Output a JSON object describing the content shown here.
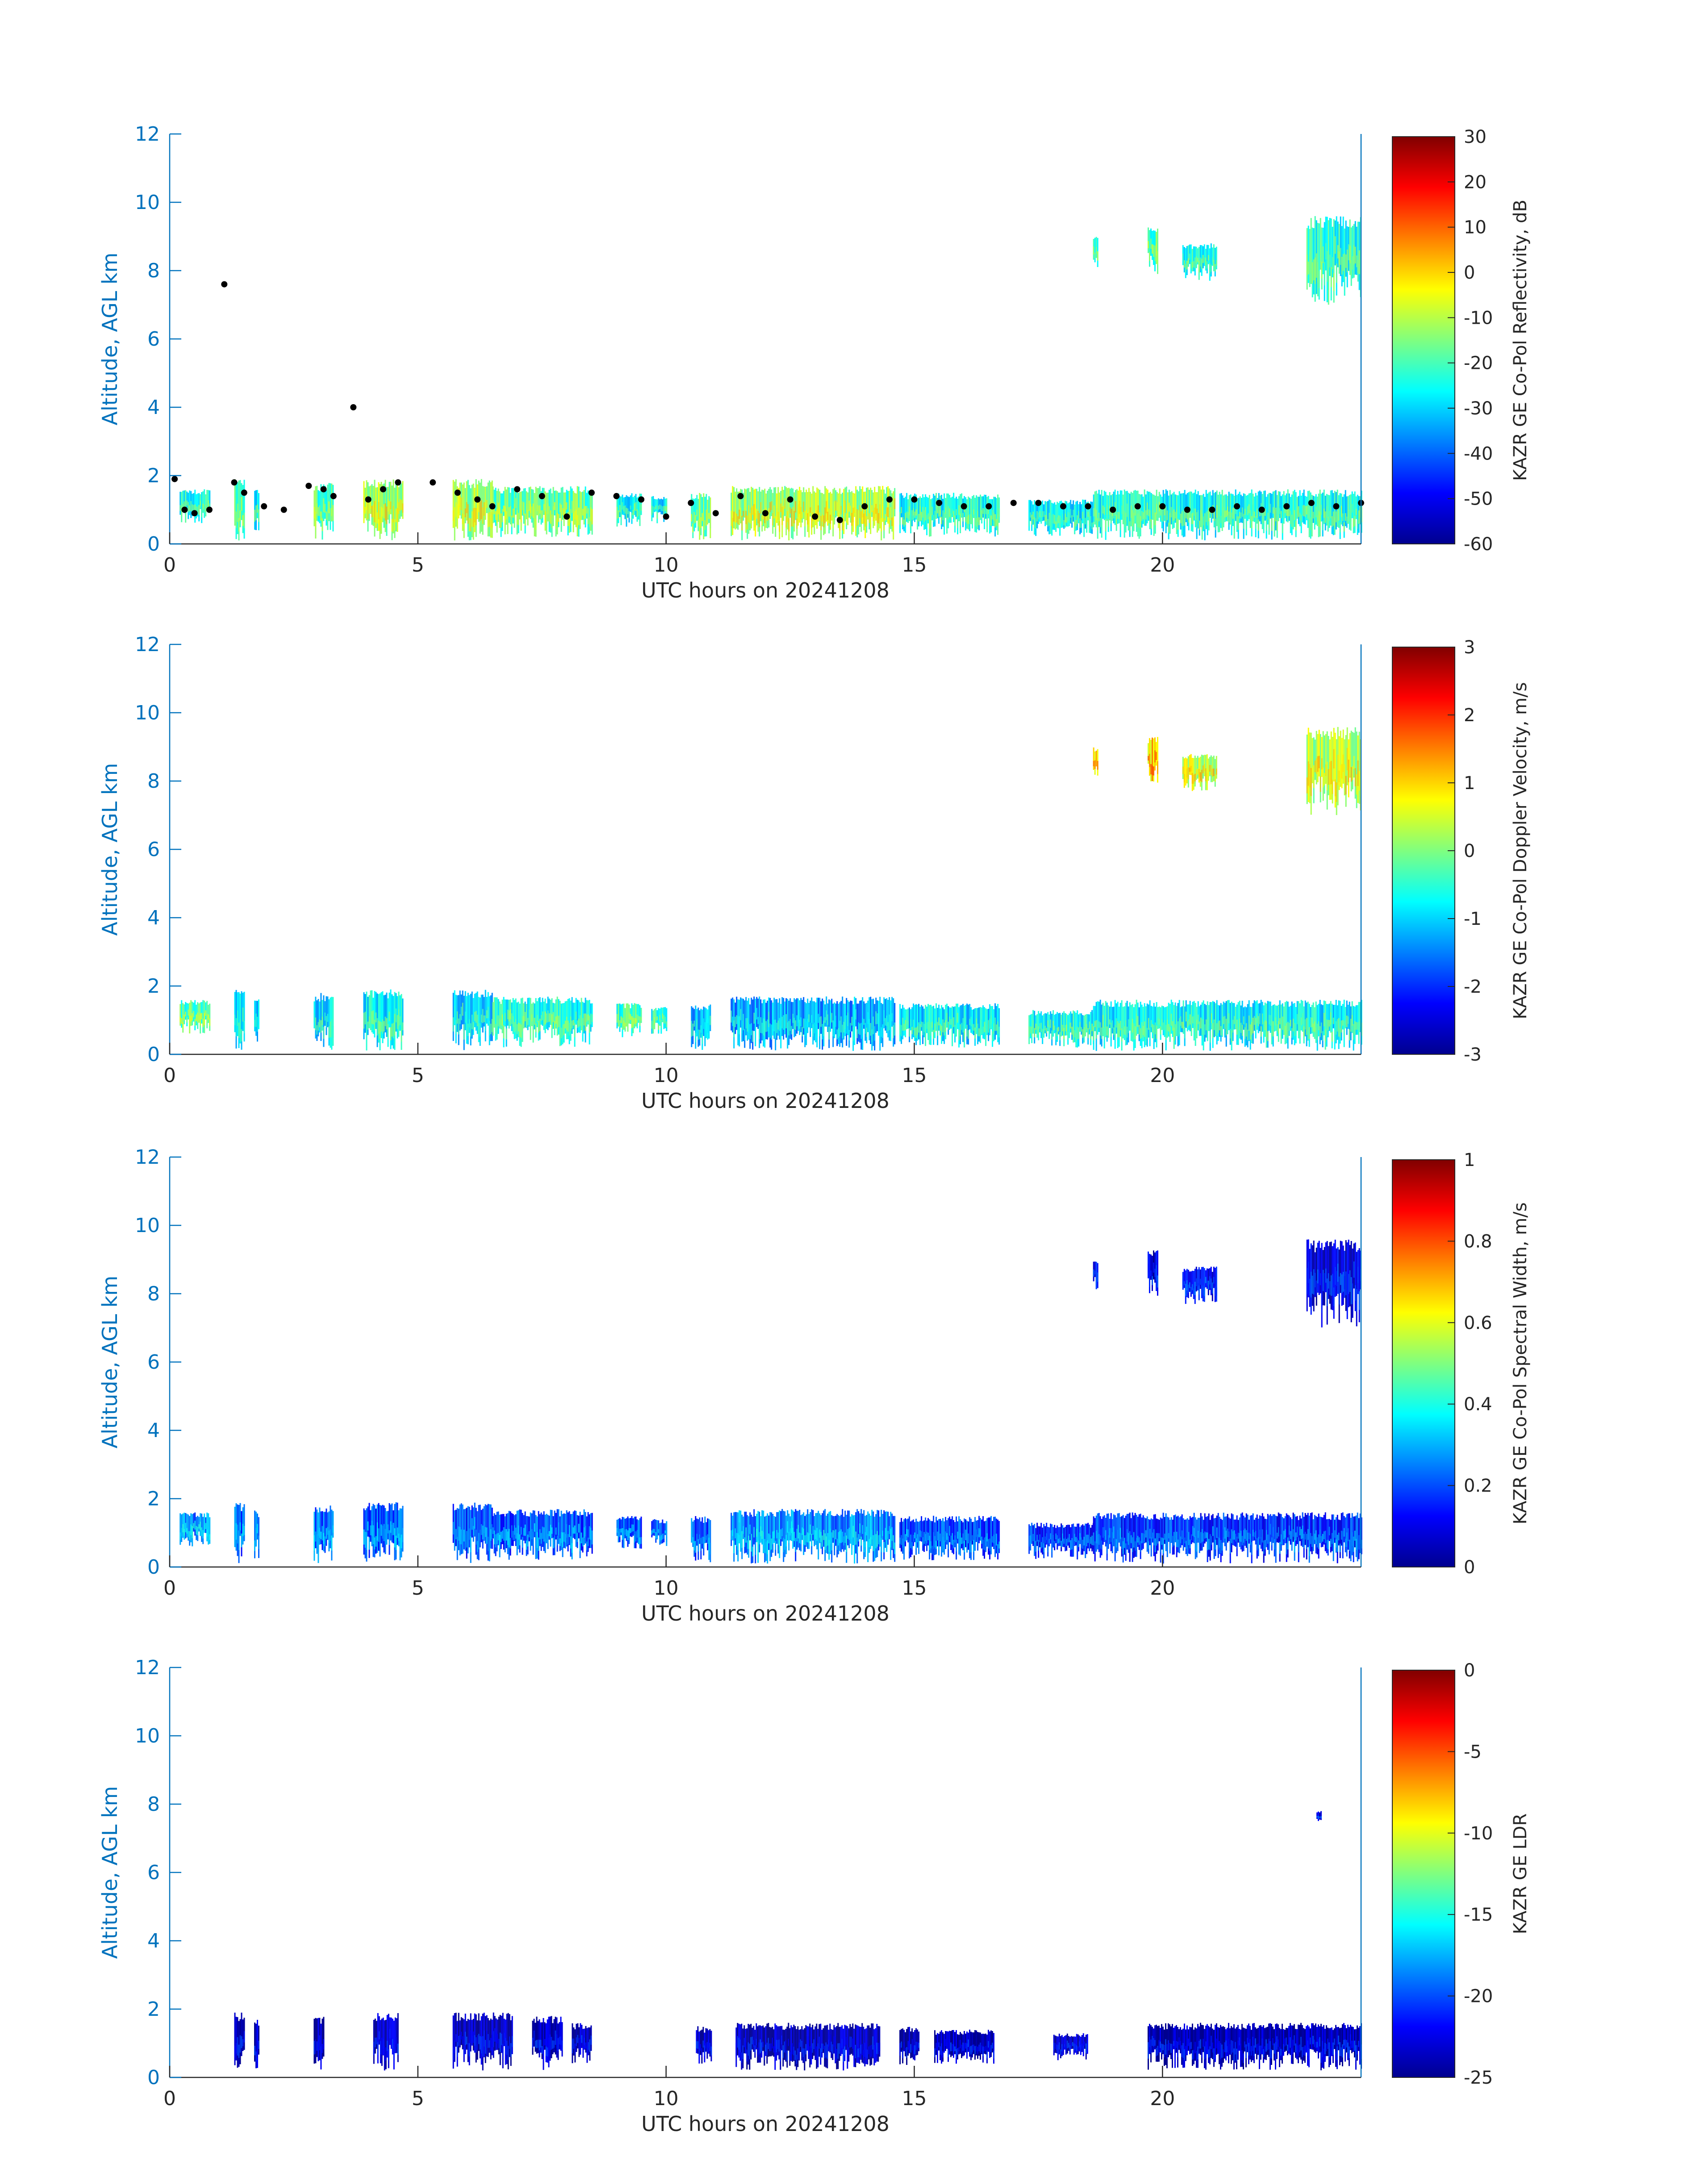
{
  "colormap": "jet",
  "colors": {
    "axis_left": "#0072BD",
    "axis_bottom": "#262626",
    "mlh_marker": "#000000"
  },
  "chart_data": [
    {
      "type": "heatmap",
      "title": "",
      "xlabel": "UTC hours on 20241208",
      "ylabel": "Altitude, AGL km",
      "xlim": [
        0,
        24
      ],
      "ylim": [
        0,
        12
      ],
      "xticks": [
        "0",
        "5",
        "10",
        "15",
        "20"
      ],
      "yticks": [
        "0",
        "2",
        "4",
        "6",
        "8",
        "10",
        "12"
      ],
      "colorbar": {
        "label": "KAZR GE Co-Pol Reflectivity, dB",
        "range": [
          -60,
          30
        ],
        "ticks": [
          "30",
          "20",
          "10",
          "0",
          "-10",
          "-20",
          "-30",
          "-40",
          "-50",
          "-60"
        ]
      },
      "overlay": {
        "type": "scatter",
        "points": [
          [
            0.1,
            1.9
          ],
          [
            0.3,
            1.0
          ],
          [
            0.5,
            0.9
          ],
          [
            0.8,
            1.0
          ],
          [
            1.1,
            7.6
          ],
          [
            1.3,
            1.8
          ],
          [
            1.5,
            1.5
          ],
          [
            1.9,
            1.1
          ],
          [
            2.3,
            1.0
          ],
          [
            2.8,
            1.7
          ],
          [
            3.1,
            1.6
          ],
          [
            3.3,
            1.4
          ],
          [
            3.7,
            4.0
          ],
          [
            4.0,
            1.3
          ],
          [
            4.3,
            1.6
          ],
          [
            4.6,
            1.8
          ],
          [
            5.3,
            1.8
          ],
          [
            5.8,
            1.5
          ],
          [
            6.2,
            1.3
          ],
          [
            6.5,
            1.1
          ],
          [
            7.0,
            1.6
          ],
          [
            7.5,
            1.4
          ],
          [
            8.0,
            0.8
          ],
          [
            8.5,
            1.5
          ],
          [
            9.0,
            1.4
          ],
          [
            9.5,
            1.3
          ],
          [
            10.0,
            0.8
          ],
          [
            10.5,
            1.2
          ],
          [
            11.0,
            0.9
          ],
          [
            11.5,
            1.4
          ],
          [
            12.0,
            0.9
          ],
          [
            12.5,
            1.3
          ],
          [
            13.0,
            0.8
          ],
          [
            13.5,
            0.7
          ],
          [
            14.0,
            1.1
          ],
          [
            14.5,
            1.3
          ],
          [
            15.0,
            1.3
          ],
          [
            15.5,
            1.2
          ],
          [
            16.0,
            1.1
          ],
          [
            16.5,
            1.1
          ],
          [
            17.0,
            1.2
          ],
          [
            17.5,
            1.2
          ],
          [
            18.0,
            1.1
          ],
          [
            18.5,
            1.1
          ],
          [
            19.0,
            1.0
          ],
          [
            19.5,
            1.1
          ],
          [
            20.0,
            1.1
          ],
          [
            20.5,
            1.0
          ],
          [
            21.0,
            1.0
          ],
          [
            21.5,
            1.1
          ],
          [
            22.0,
            1.0
          ],
          [
            22.5,
            1.1
          ],
          [
            23.0,
            1.2
          ],
          [
            23.5,
            1.1
          ],
          [
            24.0,
            1.2
          ]
        ]
      },
      "echoes": [
        {
          "x": [
            0.2,
            0.8
          ],
          "top": 1.6,
          "base": 0.6,
          "v": -25
        },
        {
          "x": [
            1.3,
            1.5
          ],
          "top": 1.9,
          "base": 0.1,
          "v": -20
        },
        {
          "x": [
            1.7,
            1.8
          ],
          "top": 1.7,
          "base": 0.1,
          "v": -28
        },
        {
          "x": [
            2.9,
            3.3
          ],
          "top": 1.8,
          "base": 0.1,
          "v": -20
        },
        {
          "x": [
            3.9,
            4.7
          ],
          "top": 1.9,
          "base": 0.1,
          "v": -12
        },
        {
          "x": [
            5.7,
            6.5
          ],
          "top": 1.9,
          "base": 0.1,
          "v": -12
        },
        {
          "x": [
            6.5,
            8.5
          ],
          "top": 1.7,
          "base": 0.2,
          "v": -18
        },
        {
          "x": [
            9.0,
            9.5
          ],
          "top": 1.5,
          "base": 0.5,
          "v": -26
        },
        {
          "x": [
            9.7,
            10.0
          ],
          "top": 1.4,
          "base": 0.6,
          "v": -28
        },
        {
          "x": [
            10.5,
            10.9
          ],
          "top": 1.5,
          "base": 0.1,
          "v": -18
        },
        {
          "x": [
            11.3,
            14.6
          ],
          "top": 1.7,
          "base": 0.1,
          "v": -12
        },
        {
          "x": [
            14.7,
            16.7
          ],
          "top": 1.5,
          "base": 0.2,
          "v": -25
        },
        {
          "x": [
            17.3,
            18.6
          ],
          "top": 1.3,
          "base": 0.2,
          "v": -28
        },
        {
          "x": [
            18.6,
            24.0
          ],
          "top": 1.6,
          "base": 0.1,
          "v": -25
        },
        {
          "x": [
            18.6,
            18.7
          ],
          "top": 9.0,
          "base": 8.1,
          "v": -22
        },
        {
          "x": [
            19.7,
            19.9
          ],
          "top": 9.3,
          "base": 7.9,
          "v": -20
        },
        {
          "x": [
            20.4,
            21.1
          ],
          "top": 8.8,
          "base": 7.7,
          "v": -26
        },
        {
          "x": [
            22.9,
            24.0
          ],
          "top": 9.6,
          "base": 7.0,
          "v": -24
        }
      ]
    },
    {
      "type": "heatmap",
      "title": "",
      "xlabel": "UTC hours on 20241208",
      "ylabel": "Altitude, AGL km",
      "xlim": [
        0,
        24
      ],
      "ylim": [
        0,
        12
      ],
      "xticks": [
        "0",
        "5",
        "10",
        "15",
        "20"
      ],
      "yticks": [
        "0",
        "2",
        "4",
        "6",
        "8",
        "10",
        "12"
      ],
      "colorbar": {
        "label": "KAZR GE Co-Pol Doppler Velocity, m/s",
        "range": [
          -3,
          3
        ],
        "ticks": [
          "3",
          "2",
          "1",
          "0",
          "-1",
          "-2",
          "-3"
        ]
      },
      "echoes": [
        {
          "x": [
            0.2,
            0.8
          ],
          "top": 1.6,
          "base": 0.6,
          "v": -0.3
        },
        {
          "x": [
            1.3,
            1.5
          ],
          "top": 1.9,
          "base": 0.1,
          "v": -1.0
        },
        {
          "x": [
            1.7,
            1.8
          ],
          "top": 1.7,
          "base": 0.1,
          "v": -1.2
        },
        {
          "x": [
            2.9,
            3.3
          ],
          "top": 1.8,
          "base": 0.1,
          "v": -1.0
        },
        {
          "x": [
            3.9,
            4.7
          ],
          "top": 1.9,
          "base": 0.1,
          "v": -0.8
        },
        {
          "x": [
            5.7,
            6.5
          ],
          "top": 1.9,
          "base": 0.1,
          "v": -1.0
        },
        {
          "x": [
            6.5,
            8.5
          ],
          "top": 1.7,
          "base": 0.2,
          "v": -0.6
        },
        {
          "x": [
            9.0,
            9.5
          ],
          "top": 1.5,
          "base": 0.5,
          "v": -0.4
        },
        {
          "x": [
            9.7,
            10.0
          ],
          "top": 1.4,
          "base": 0.6,
          "v": -0.6
        },
        {
          "x": [
            10.5,
            10.9
          ],
          "top": 1.5,
          "base": 0.1,
          "v": -1.2
        },
        {
          "x": [
            11.3,
            14.6
          ],
          "top": 1.7,
          "base": 0.1,
          "v": -1.3
        },
        {
          "x": [
            14.7,
            16.7
          ],
          "top": 1.5,
          "base": 0.2,
          "v": -0.9
        },
        {
          "x": [
            17.3,
            18.6
          ],
          "top": 1.3,
          "base": 0.2,
          "v": -0.7
        },
        {
          "x": [
            18.6,
            24.0
          ],
          "top": 1.6,
          "base": 0.1,
          "v": -0.8
        },
        {
          "x": [
            18.6,
            18.7
          ],
          "top": 9.0,
          "base": 8.1,
          "v": 0.8
        },
        {
          "x": [
            19.7,
            19.9
          ],
          "top": 9.3,
          "base": 7.9,
          "v": 1.0
        },
        {
          "x": [
            20.4,
            21.1
          ],
          "top": 8.8,
          "base": 7.7,
          "v": 0.4
        },
        {
          "x": [
            22.9,
            24.0
          ],
          "top": 9.6,
          "base": 7.0,
          "v": 0.3
        }
      ]
    },
    {
      "type": "heatmap",
      "title": "",
      "xlabel": "UTC hours on 20241208",
      "ylabel": "Altitude, AGL km",
      "xlim": [
        0,
        24
      ],
      "ylim": [
        0,
        12
      ],
      "xticks": [
        "0",
        "5",
        "10",
        "15",
        "20"
      ],
      "yticks": [
        "0",
        "2",
        "4",
        "6",
        "8",
        "10",
        "12"
      ],
      "colorbar": {
        "label": "KAZR GE Co-Pol Spectral Width, m/s",
        "range": [
          0,
          1
        ],
        "ticks": [
          "1",
          "0.8",
          "0.6",
          "0.4",
          "0.2",
          "0"
        ]
      },
      "echoes": [
        {
          "x": [
            0.2,
            0.8
          ],
          "top": 1.6,
          "base": 0.6,
          "v": 0.25
        },
        {
          "x": [
            1.3,
            1.5
          ],
          "top": 1.9,
          "base": 0.1,
          "v": 0.22
        },
        {
          "x": [
            1.7,
            1.8
          ],
          "top": 1.7,
          "base": 0.1,
          "v": 0.2
        },
        {
          "x": [
            2.9,
            3.3
          ],
          "top": 1.8,
          "base": 0.1,
          "v": 0.22
        },
        {
          "x": [
            3.9,
            4.7
          ],
          "top": 1.9,
          "base": 0.1,
          "v": 0.2
        },
        {
          "x": [
            5.7,
            6.5
          ],
          "top": 1.9,
          "base": 0.1,
          "v": 0.18
        },
        {
          "x": [
            6.5,
            8.5
          ],
          "top": 1.7,
          "base": 0.2,
          "v": 0.2
        },
        {
          "x": [
            9.0,
            9.5
          ],
          "top": 1.5,
          "base": 0.5,
          "v": 0.2
        },
        {
          "x": [
            9.7,
            10.0
          ],
          "top": 1.4,
          "base": 0.6,
          "v": 0.2
        },
        {
          "x": [
            10.5,
            10.9
          ],
          "top": 1.5,
          "base": 0.1,
          "v": 0.2
        },
        {
          "x": [
            11.3,
            14.6
          ],
          "top": 1.7,
          "base": 0.1,
          "v": 0.25
        },
        {
          "x": [
            14.7,
            16.7
          ],
          "top": 1.5,
          "base": 0.2,
          "v": 0.18
        },
        {
          "x": [
            17.3,
            18.6
          ],
          "top": 1.3,
          "base": 0.2,
          "v": 0.15
        },
        {
          "x": [
            18.6,
            24.0
          ],
          "top": 1.6,
          "base": 0.1,
          "v": 0.16
        },
        {
          "x": [
            18.6,
            18.7
          ],
          "top": 9.0,
          "base": 8.1,
          "v": 0.1
        },
        {
          "x": [
            19.7,
            19.9
          ],
          "top": 9.3,
          "base": 7.9,
          "v": 0.08
        },
        {
          "x": [
            20.4,
            21.1
          ],
          "top": 8.8,
          "base": 7.7,
          "v": 0.1
        },
        {
          "x": [
            22.9,
            24.0
          ],
          "top": 9.6,
          "base": 7.0,
          "v": 0.08
        }
      ]
    },
    {
      "type": "heatmap",
      "title": "",
      "xlabel": "UTC hours on 20241208",
      "ylabel": "Altitude, AGL km",
      "xlim": [
        0,
        24
      ],
      "ylim": [
        0,
        12
      ],
      "xticks": [
        "0",
        "5",
        "10",
        "15",
        "20"
      ],
      "yticks": [
        "0",
        "2",
        "4",
        "6",
        "8",
        "10",
        "12"
      ],
      "colorbar": {
        "label": "KAZR GE LDR",
        "range": [
          -25,
          0
        ],
        "ticks": [
          "0",
          "-5",
          "-10",
          "-15",
          "-20",
          "-25"
        ]
      },
      "echoes": [
        {
          "x": [
            1.3,
            1.5
          ],
          "top": 1.9,
          "base": 0.2,
          "v": -24
        },
        {
          "x": [
            1.7,
            1.8
          ],
          "top": 1.7,
          "base": 0.2,
          "v": -24
        },
        {
          "x": [
            2.9,
            3.1
          ],
          "top": 1.8,
          "base": 0.2,
          "v": -24
        },
        {
          "x": [
            4.1,
            4.6
          ],
          "top": 1.9,
          "base": 0.2,
          "v": -24
        },
        {
          "x": [
            5.7,
            6.9
          ],
          "top": 1.9,
          "base": 0.2,
          "v": -24
        },
        {
          "x": [
            7.3,
            7.9
          ],
          "top": 1.8,
          "base": 0.2,
          "v": -24
        },
        {
          "x": [
            8.1,
            8.5
          ],
          "top": 1.6,
          "base": 0.3,
          "v": -24
        },
        {
          "x": [
            10.6,
            10.9
          ],
          "top": 1.5,
          "base": 0.2,
          "v": -24
        },
        {
          "x": [
            11.4,
            14.3
          ],
          "top": 1.6,
          "base": 0.2,
          "v": -24
        },
        {
          "x": [
            14.7,
            15.1
          ],
          "top": 1.5,
          "base": 0.3,
          "v": -24
        },
        {
          "x": [
            15.4,
            16.6
          ],
          "top": 1.4,
          "base": 0.4,
          "v": -24
        },
        {
          "x": [
            17.8,
            18.5
          ],
          "top": 1.3,
          "base": 0.5,
          "v": -24
        },
        {
          "x": [
            19.7,
            24.0
          ],
          "top": 1.6,
          "base": 0.2,
          "v": -24
        },
        {
          "x": [
            23.1,
            23.2
          ],
          "top": 7.8,
          "base": 7.4,
          "v": -22
        }
      ]
    }
  ]
}
